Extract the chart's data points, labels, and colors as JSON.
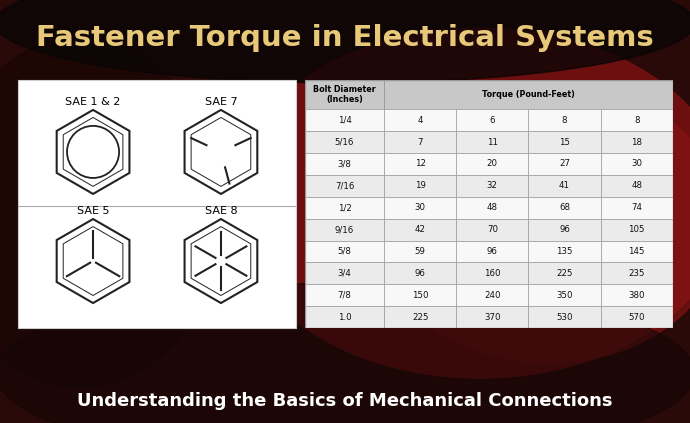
{
  "title": "Fastener Torque in Electrical Systems",
  "subtitle": "Understanding the Basics of Mechanical Connections",
  "title_color": "#E8C97A",
  "subtitle_color": "#ffffff",
  "panel_left_bg": "#ffffff",
  "table_header_bg": "#c8c8c8",
  "table_row_bg1": "#f8f8f8",
  "table_row_bg2": "#ebebeb",
  "table_border": "#999999",
  "table_header1": "Bolt Diameter\n(Inches)",
  "table_header2": "Torque (Pound-Feet)",
  "sae_labels": [
    "SAE 1 & 2",
    "SAE 7",
    "SAE 5",
    "SAE 8"
  ],
  "table_data": [
    [
      "1/4",
      "4",
      "6",
      "8",
      "8"
    ],
    [
      "5/16",
      "7",
      "11",
      "15",
      "18"
    ],
    [
      "3/8",
      "12",
      "20",
      "27",
      "30"
    ],
    [
      "7/16",
      "19",
      "32",
      "41",
      "48"
    ],
    [
      "1/2",
      "30",
      "48",
      "68",
      "74"
    ],
    [
      "9/16",
      "42",
      "70",
      "96",
      "105"
    ],
    [
      "5/8",
      "59",
      "96",
      "135",
      "145"
    ],
    [
      "3/4",
      "96",
      "160",
      "225",
      "235"
    ],
    [
      "7/8",
      "150",
      "240",
      "350",
      "380"
    ],
    [
      "1.0",
      "225",
      "370",
      "530",
      "570"
    ]
  ]
}
